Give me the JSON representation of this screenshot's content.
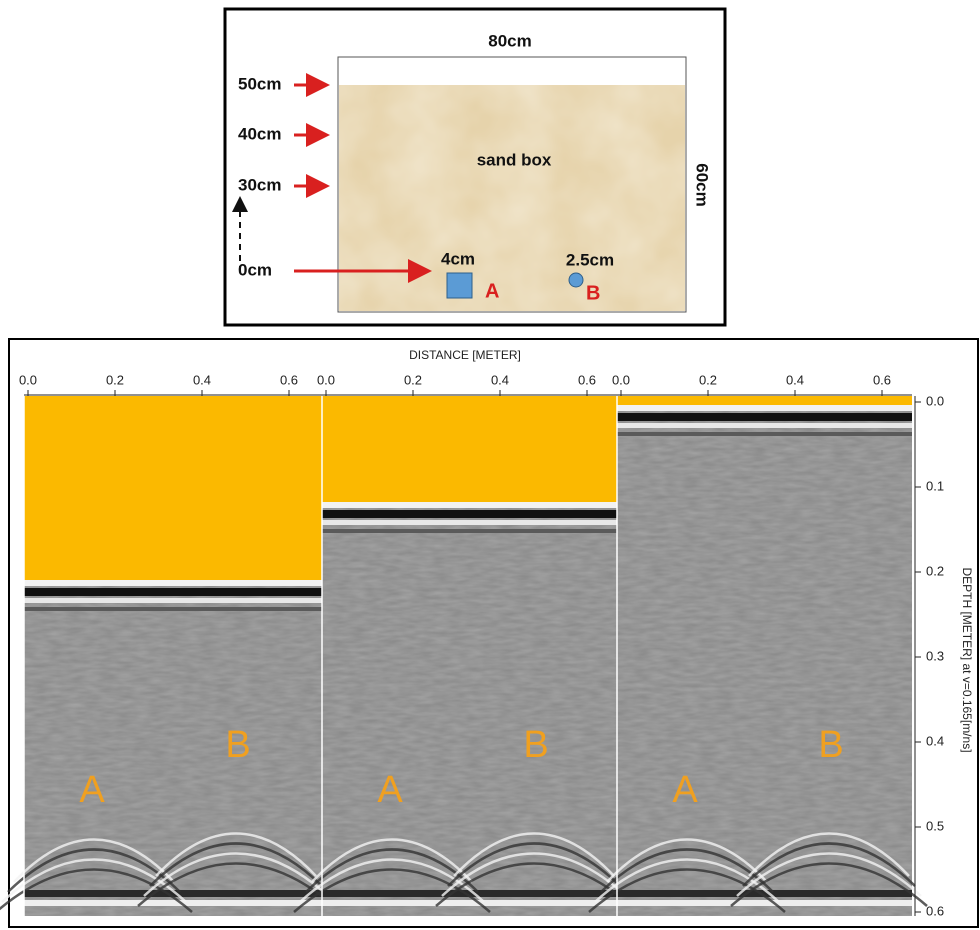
{
  "sandbox_diagram": {
    "width_label": "80cm",
    "height_label": "60cm",
    "box_label": "sand box",
    "levels": [
      "50cm",
      "40cm",
      "30cm",
      "0cm"
    ],
    "target_a": {
      "size": "4cm",
      "label": "A"
    },
    "target_b": {
      "size": "2.5cm",
      "label": "B"
    }
  },
  "radargram": {
    "x_axis_title": "DISTANCE [METER]",
    "y_axis_title": "DEPTH [METER] at v=0.165[m/ns]",
    "y_ticks": [
      "0.0",
      "0.1",
      "0.2",
      "0.3",
      "0.4",
      "0.5",
      "0.6"
    ],
    "panels": [
      {
        "x_ticks": [
          "0.0",
          "0.2",
          "0.4",
          "0.6"
        ],
        "targets": [
          "A",
          "B"
        ]
      },
      {
        "x_ticks": [
          "0.0",
          "0.2",
          "0.4",
          "0.6"
        ],
        "targets": [
          "A",
          "B"
        ]
      },
      {
        "x_ticks": [
          "0.0",
          "0.2",
          "0.4",
          "0.6"
        ],
        "targets": [
          "A",
          "B"
        ]
      }
    ]
  }
}
